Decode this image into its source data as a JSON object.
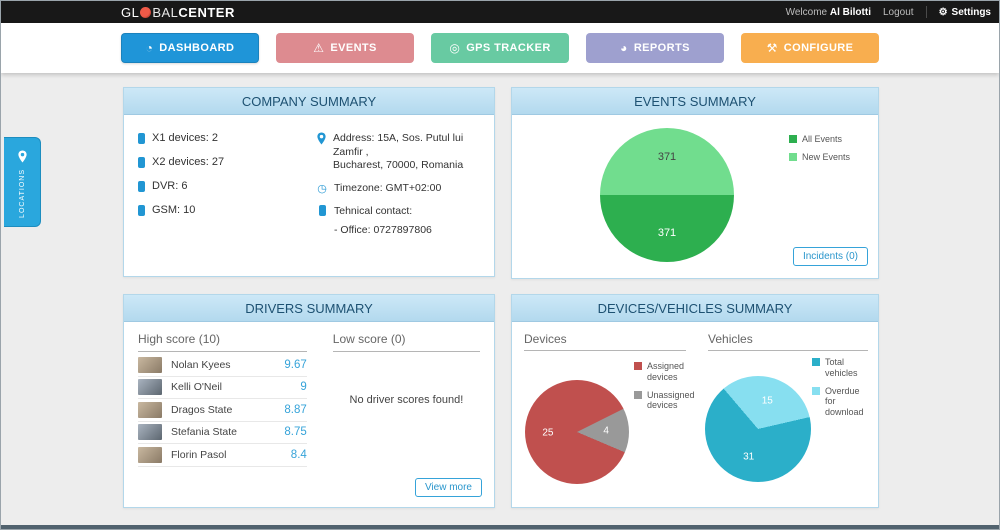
{
  "topbar": {
    "logo_part1": "GL",
    "logo_part2": "BAL",
    "logo_part3": "CENTER",
    "welcome_prefix": "Welcome",
    "username": "Al Bilotti",
    "logout": "Logout",
    "settings": "Settings"
  },
  "icons": {
    "dashboard": "◔",
    "events": "⚠",
    "gps": "◎",
    "reports": "◕",
    "configure": "⚒",
    "settings": "⚙",
    "clock": "◷"
  },
  "nav": {
    "items": [
      {
        "label": "DASHBOARD",
        "color": "#1f95d8"
      },
      {
        "label": "EVENTS",
        "color": "#dd8b90"
      },
      {
        "label": "GPS TRACKER",
        "color": "#68caa2"
      },
      {
        "label": "REPORTS",
        "color": "#9ea0cf"
      },
      {
        "label": "CONFIGURE",
        "color": "#f8ae4f"
      }
    ]
  },
  "locations_tab": {
    "label": "LOCATIONS"
  },
  "company": {
    "title": "COMPANY SUMMARY",
    "devices": [
      {
        "label": "X1 devices: 2"
      },
      {
        "label": "X2 devices: 27"
      },
      {
        "label": "DVR: 6"
      },
      {
        "label": "GSM: 10"
      }
    ],
    "address_line1": "Address: 15A, Sos. Putul lui Zamfir ,",
    "address_line2": "Bucharest, 70000, Romania",
    "timezone": "Timezone: GMT+02:00",
    "contact_label": "Tehnical contact:",
    "contact_value": "- Office: 0727897806"
  },
  "events": {
    "title": "EVENTS SUMMARY",
    "incidents_button": "Incidents (0)"
  },
  "drivers": {
    "title": "DRIVERS SUMMARY",
    "high_header": "High score (10)",
    "low_header": "Low score (0)",
    "high_scores": [
      {
        "name": "Nolan Kyees",
        "score": "9.67"
      },
      {
        "name": "Kelli O'Neil",
        "score": "9"
      },
      {
        "name": "Dragos State",
        "score": "8.87"
      },
      {
        "name": "Stefania State",
        "score": "8.75"
      },
      {
        "name": "Florin Pasol",
        "score": "8.4"
      }
    ],
    "low_empty": "No driver scores found!",
    "view_more": "View more"
  },
  "devices_vehicles": {
    "title": "DEVICES/VEHICLES SUMMARY",
    "devices_header": "Devices",
    "vehicles_header": "Vehicles"
  },
  "chart_data": [
    {
      "type": "pie",
      "title": "Events Summary",
      "labels": [
        "All Events",
        "New Events"
      ],
      "values": [
        371,
        371
      ],
      "colors": [
        "#2daf4f",
        "#71dd8e"
      ],
      "label_colors": [
        "#ffffff",
        "#444444"
      ],
      "start_angle": 90,
      "legend_position": "right"
    },
    {
      "type": "pie",
      "title": "Devices",
      "labels": [
        "Assigned devices",
        "Unassigned devices"
      ],
      "values": [
        25,
        4
      ],
      "colors": [
        "#c0504e",
        "#999999"
      ],
      "label_colors": [
        "#ffffff",
        "#ffffff"
      ],
      "start_angle": 113,
      "legend_position": "right"
    },
    {
      "type": "pie",
      "title": "Vehicles",
      "labels": [
        "Total vehicles",
        "Overdue for download"
      ],
      "values": [
        31,
        15
      ],
      "colors": [
        "#2bafc9",
        "#87dff0"
      ],
      "label_colors": [
        "#ffffff",
        "#ffffff"
      ],
      "start_angle": 77,
      "legend_position": "right"
    }
  ]
}
